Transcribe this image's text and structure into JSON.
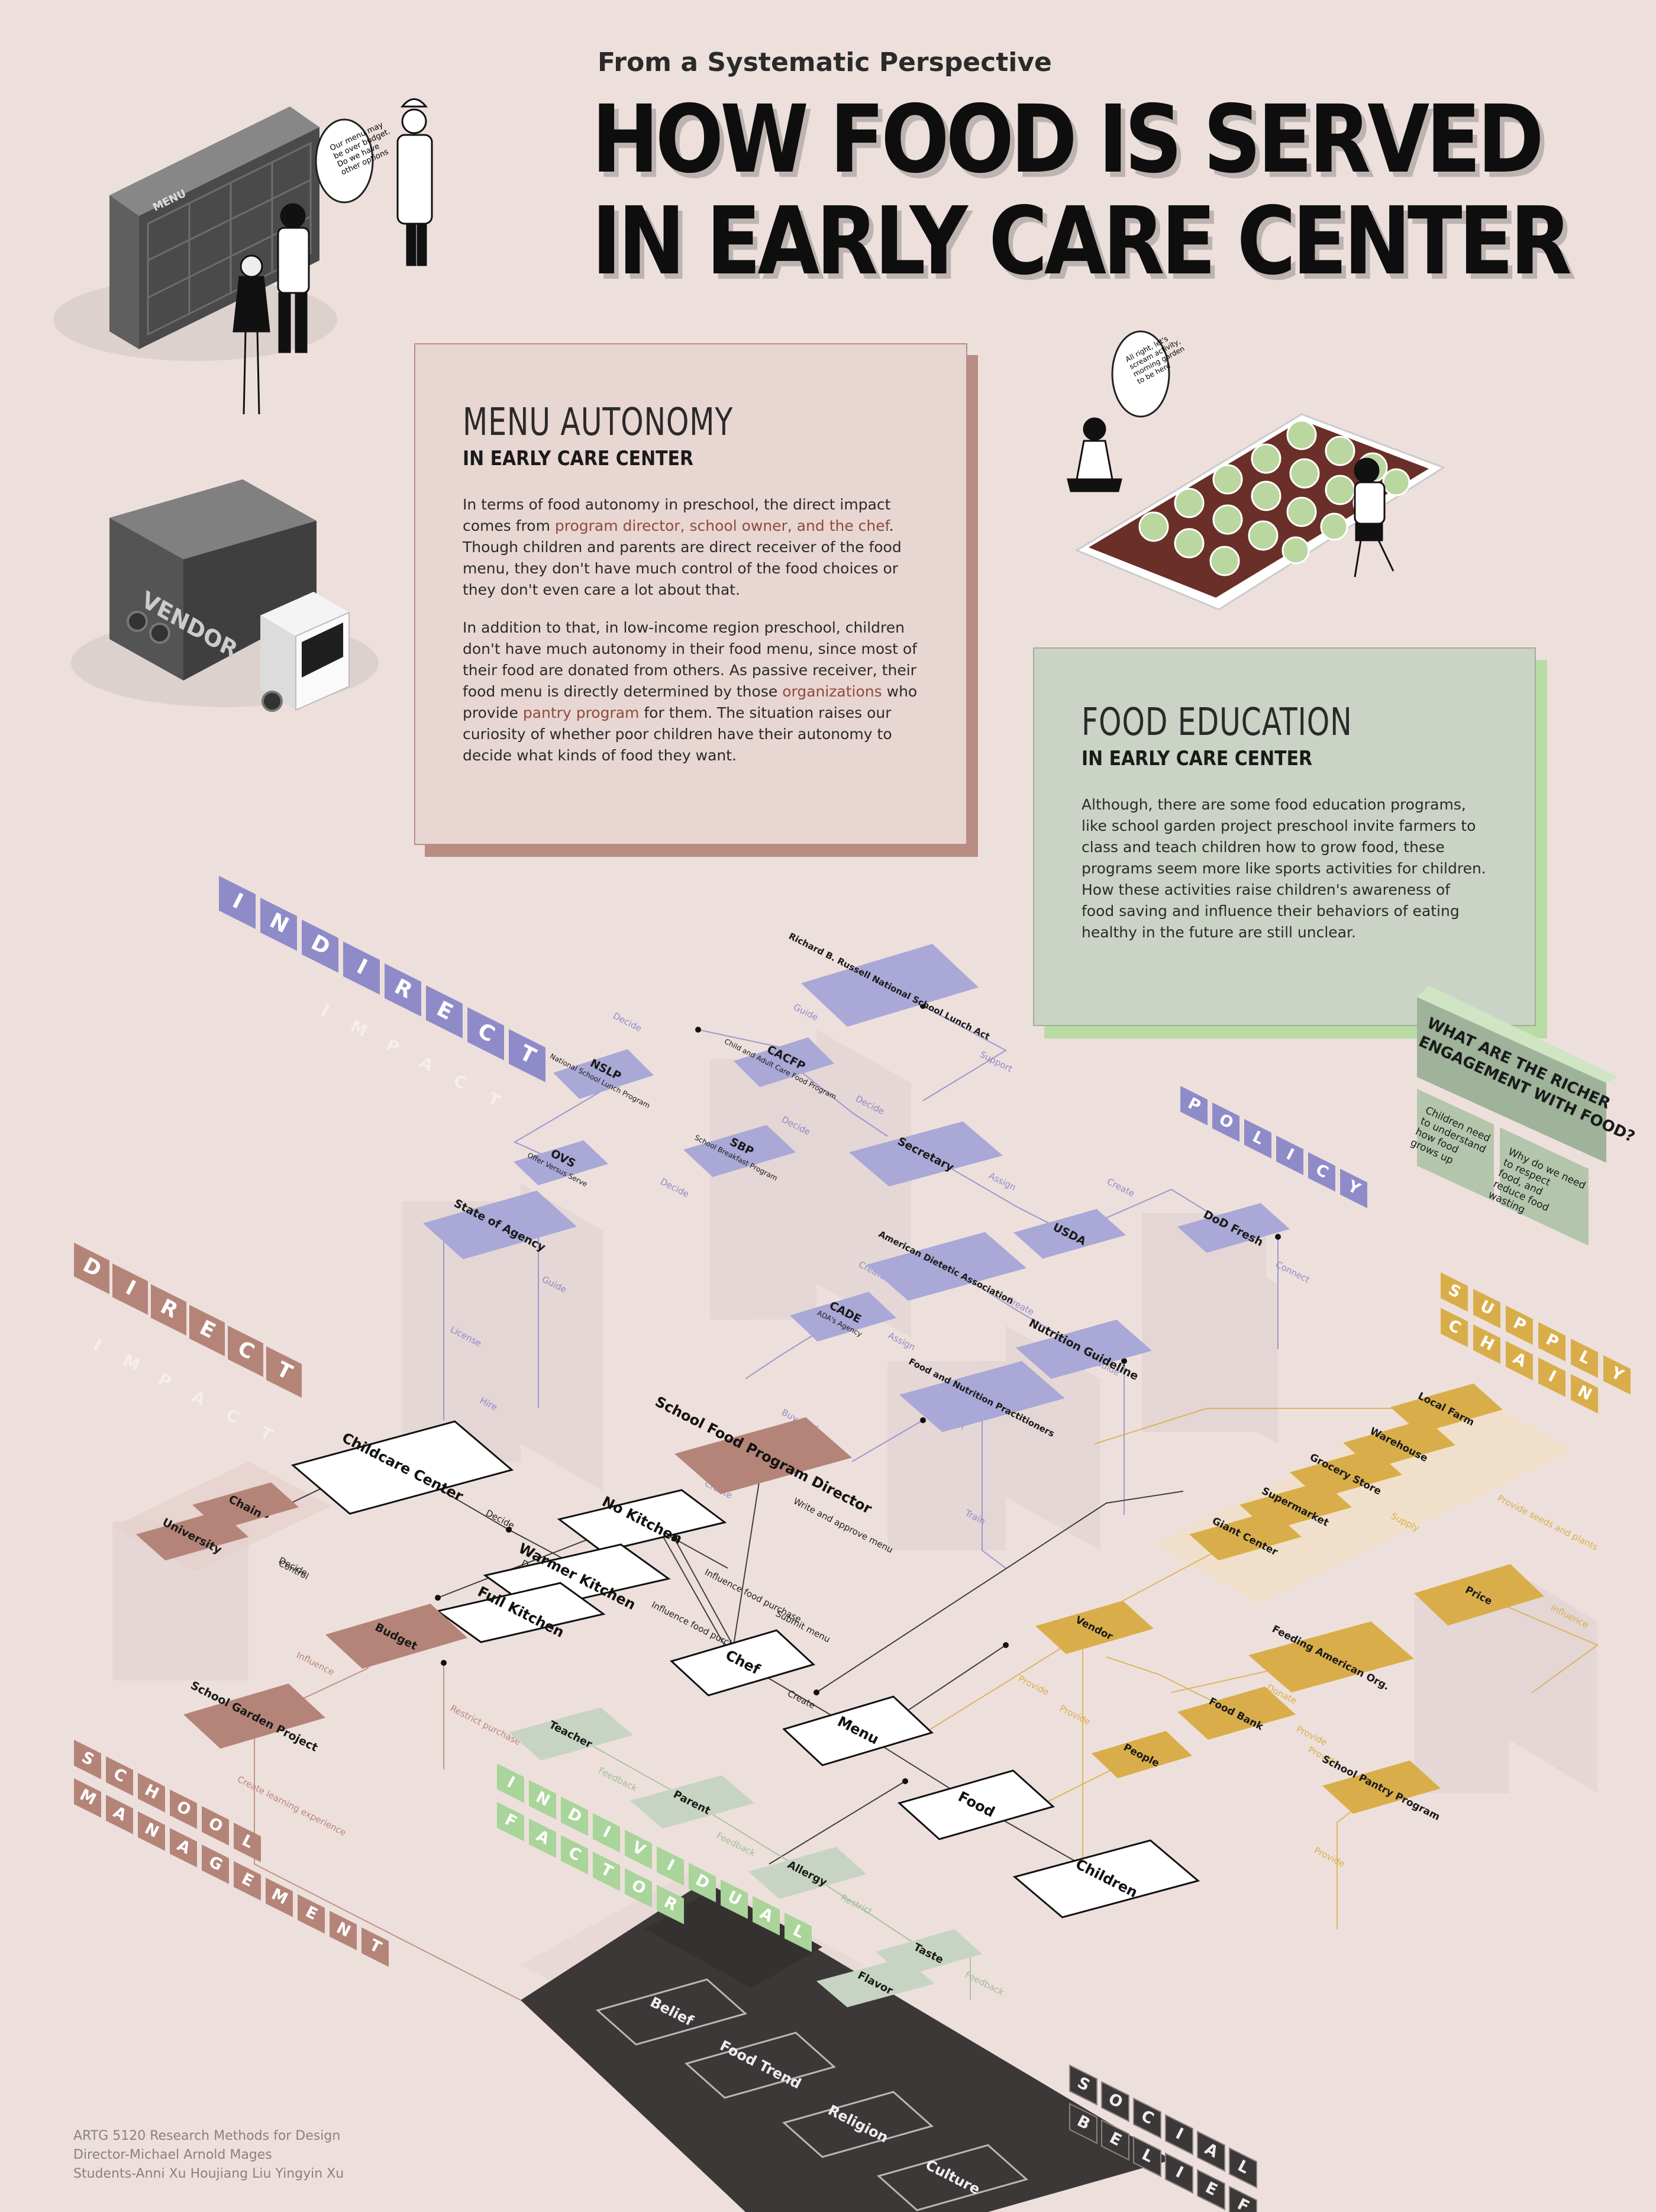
{
  "header": {
    "kicker": "From a Systematic Perspective",
    "title_line1": "HOW FOOD IS SERVED",
    "title_line2": "IN EARLY CARE CENTER"
  },
  "menu_panel": {
    "title": "MENU AUTONOMY",
    "subtitle": "IN EARLY CARE CENTER",
    "p1_a": "In terms of food autonomy in preschool, the direct impact comes from ",
    "p1_hl": "program director, school owner, and the chef",
    "p1_b": ". Though children and parents are direct receiver of the food menu, they don't have much control of the food choices or they don't even care a lot about that.",
    "p2_a": "In addition to that, in low-income region preschool, children don't have much autonomy in their food menu, since most of their food are donated from others. As passive receiver, their food menu is directly determined by those ",
    "p2_hl1": "organizations",
    "p2_b": " who provide ",
    "p2_hl2": "pantry program",
    "p2_c": " for them. The situation raises our curiosity of whether poor children have their autonomy to decide what kinds of food they want."
  },
  "food_panel": {
    "title": "FOOD EDUCATION",
    "subtitle": "IN EARLY CARE CENTER",
    "body": "Although, there are some food education programs, like school garden project preschool invite farmers to class and teach children how to grow food, these programs seem more like sports activities for children. How these activities raise children's awareness of food saving and influence their behaviors of eating healthy in the future are still unclear."
  },
  "question": {
    "title": "WHAT ARE THE RICHER ENGAGEMENT WITH FOOD?",
    "card1": "Children need to understand how food grows up",
    "card2": "Why do we need to respect food, and reduce food wasting"
  },
  "illustrations": {
    "menu_board": "MENU",
    "truck": "VENDOR",
    "bubble_board": "Our menu may be over budget. Do we have other options",
    "bubble_garden": "All right, let's scream activity, morning garden to be here"
  },
  "layer_labels": {
    "indirect": "INDIRECT",
    "indirect_impact": "IMPACT",
    "direct": "DIRECT",
    "direct_impact": "IMPACT",
    "policy": "POLICY",
    "supply": "SUPPLY",
    "chain": "CHAIN",
    "school": "SCHOOL",
    "management": "MANAGEMENT",
    "individual": "INDIVIDUAL",
    "factor": "FACTOR",
    "social": "SOCIAL",
    "belief": "BELIEF"
  },
  "nodes": {
    "policy": [
      "Richard B. Russell National School Lunch Act",
      "CACFP",
      "NSLP",
      "OVS",
      "SBP",
      "Secretary",
      "USDA",
      "DoD Fresh",
      "State of Agency",
      "American Dietetic Association",
      "CADE",
      "Nutrition Guideline",
      "Food and Nutrition Practitioners"
    ],
    "policy_sub": {
      "CACFP": "Child and Adult Care Food Program",
      "NSLP": "National School Lunch Program",
      "OVS": "Offer Versus Serve",
      "SBP": "School Breakfast Program",
      "CADE": "ADA's Agency"
    },
    "direct": [
      "Childcare Center",
      "School Food Program Director",
      "No Kitchen",
      "Warmer Kitchen",
      "Full Kitchen",
      "Chef",
      "Menu",
      "Food",
      "Children"
    ],
    "school": [
      "Chain",
      "University",
      "Budget",
      "School Garden Project"
    ],
    "supply": [
      "Local Farm",
      "Warehouse",
      "Grocery Store",
      "Supermarket",
      "Giant Center",
      "Price",
      "Vendor",
      "Feeding American Org.",
      "Food Bank",
      "People",
      "School Pantry Program"
    ],
    "individual": [
      "Teacher",
      "Parent",
      "Allergy",
      "Taste",
      "Flavor"
    ],
    "social": [
      "Belief",
      "Food Trend",
      "Religion",
      "Culture"
    ]
  },
  "edge_labels": [
    "Decide",
    "Guide",
    "Support",
    "Decide",
    "Decide",
    "Decide",
    "Assign",
    "Create",
    "Connect",
    "Guide",
    "License",
    "Hire",
    "Train",
    "Train",
    "Guide",
    "Create",
    "Assign",
    "Create",
    "Buy food",
    "Create",
    "Write and approve menu",
    "Decide",
    "Decide",
    "Influence food purchase",
    "Influence food purchase",
    "Submit menu",
    "Create",
    "Control",
    "Decide",
    "Influence",
    "Restrict purchase",
    "Create learning experience",
    "Provide",
    "Provide",
    "Provide",
    "Provide seeds and plants",
    "Supply",
    "Influence",
    "Supply",
    "Donate",
    "Provide",
    "Provide",
    "Feedback",
    "Feedback",
    "Restrict",
    "Feedback"
  ],
  "footer": {
    "course": "ARTG 5120 Research Methods for Design",
    "director": "Director-Michael Arnold Mages",
    "students": "Students-Anni Xu  Houjiang Liu  Yingyin Xu"
  },
  "colors": {
    "background": "#ede0dc",
    "policy": "#a9a8d6",
    "direct_brown": "#b58478",
    "supply": "#d9ae4a",
    "individual": "#c7d4c3",
    "social": "#3a3636",
    "highlight": "#8e4b3a"
  }
}
